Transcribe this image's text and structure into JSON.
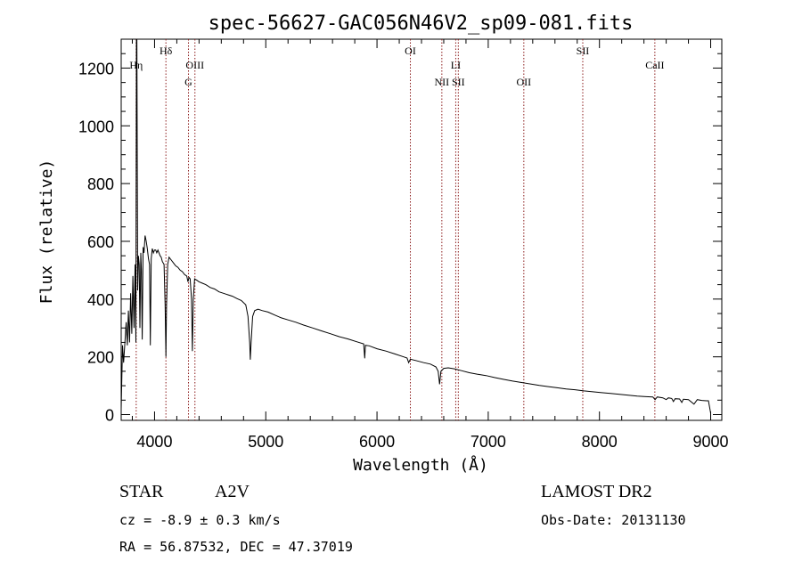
{
  "chart_data": {
    "type": "line",
    "title": "spec-56627-GAC056N46V2_sp09-081.fits",
    "xlabel": "Wavelength (Å)",
    "ylabel": "Flux (relative)",
    "xlim": [
      3700,
      9100
    ],
    "ylim": [
      -20,
      1300
    ],
    "xticks": [
      4000,
      5000,
      6000,
      7000,
      8000,
      9000
    ],
    "yticks": [
      0,
      200,
      400,
      600,
      800,
      1000,
      1200
    ],
    "grid": false,
    "spectral_lines": [
      {
        "label": "Hη",
        "wavelength": 3835,
        "row": 1
      },
      {
        "label": "Hδ",
        "wavelength": 4102,
        "row": 0
      },
      {
        "label": "G",
        "wavelength": 4305,
        "row": 2
      },
      {
        "label": "OIII",
        "wavelength": 4363,
        "row": 1
      },
      {
        "label": "OI",
        "wavelength": 6300,
        "row": 0
      },
      {
        "label": "NII",
        "wavelength": 6583,
        "row": 2
      },
      {
        "label": "LI",
        "wavelength": 6708,
        "row": 1
      },
      {
        "label": "SII",
        "wavelength": 6731,
        "row": 2
      },
      {
        "label": "OII",
        "wavelength": 7320,
        "row": 2
      },
      {
        "label": "SII",
        "wavelength": 7850,
        "row": 0
      },
      {
        "label": "CaII",
        "wavelength": 8498,
        "row": 1
      }
    ],
    "spectrum": [
      [
        3700,
        20
      ],
      [
        3712,
        240
      ],
      [
        3722,
        180
      ],
      [
        3735,
        260
      ],
      [
        3745,
        320
      ],
      [
        3755,
        240
      ],
      [
        3765,
        360
      ],
      [
        3775,
        250
      ],
      [
        3785,
        420
      ],
      [
        3795,
        280
      ],
      [
        3805,
        480
      ],
      [
        3815,
        300
      ],
      [
        3825,
        520
      ],
      [
        3832,
        250
      ],
      [
        3837,
        1300
      ],
      [
        3841,
        1300
      ],
      [
        3848,
        430
      ],
      [
        3855,
        550
      ],
      [
        3862,
        520
      ],
      [
        3868,
        300
      ],
      [
        3876,
        560
      ],
      [
        3882,
        500
      ],
      [
        3889,
        260
      ],
      [
        3897,
        580
      ],
      [
        3905,
        560
      ],
      [
        3915,
        620
      ],
      [
        3925,
        600
      ],
      [
        3935,
        575
      ],
      [
        3945,
        540
      ],
      [
        3955,
        520
      ],
      [
        3962,
        240
      ],
      [
        3970,
        540
      ],
      [
        3980,
        575
      ],
      [
        3990,
        560
      ],
      [
        4000,
        570
      ],
      [
        4010,
        570
      ],
      [
        4020,
        560
      ],
      [
        4030,
        570
      ],
      [
        4040,
        560
      ],
      [
        4050,
        550
      ],
      [
        4060,
        545
      ],
      [
        4070,
        530
      ],
      [
        4085,
        520
      ],
      [
        4095,
        380
      ],
      [
        4102,
        200
      ],
      [
        4108,
        380
      ],
      [
        4118,
        520
      ],
      [
        4130,
        545
      ],
      [
        4150,
        535
      ],
      [
        4170,
        525
      ],
      [
        4190,
        515
      ],
      [
        4210,
        510
      ],
      [
        4230,
        500
      ],
      [
        4250,
        495
      ],
      [
        4270,
        485
      ],
      [
        4290,
        480
      ],
      [
        4300,
        460
      ],
      [
        4310,
        475
      ],
      [
        4320,
        470
      ],
      [
        4332,
        400
      ],
      [
        4340,
        220
      ],
      [
        4348,
        400
      ],
      [
        4360,
        470
      ],
      [
        4380,
        465
      ],
      [
        4400,
        460
      ],
      [
        4430,
        455
      ],
      [
        4460,
        450
      ],
      [
        4500,
        440
      ],
      [
        4540,
        435
      ],
      [
        4580,
        425
      ],
      [
        4620,
        420
      ],
      [
        4660,
        415
      ],
      [
        4700,
        410
      ],
      [
        4740,
        402
      ],
      [
        4780,
        395
      ],
      [
        4820,
        380
      ],
      [
        4840,
        340
      ],
      [
        4855,
        250
      ],
      [
        4861,
        190
      ],
      [
        4868,
        250
      ],
      [
        4882,
        340
      ],
      [
        4900,
        360
      ],
      [
        4930,
        365
      ],
      [
        4970,
        360
      ],
      [
        5020,
        355
      ],
      [
        5080,
        345
      ],
      [
        5140,
        335
      ],
      [
        5200,
        328
      ],
      [
        5270,
        320
      ],
      [
        5340,
        310
      ],
      [
        5420,
        300
      ],
      [
        5500,
        290
      ],
      [
        5580,
        280
      ],
      [
        5660,
        270
      ],
      [
        5740,
        262
      ],
      [
        5820,
        252
      ],
      [
        5880,
        245
      ],
      [
        5890,
        195
      ],
      [
        5896,
        240
      ],
      [
        5930,
        238
      ],
      [
        6000,
        228
      ],
      [
        6080,
        220
      ],
      [
        6160,
        210
      ],
      [
        6240,
        200
      ],
      [
        6270,
        196
      ],
      [
        6285,
        180
      ],
      [
        6300,
        192
      ],
      [
        6360,
        186
      ],
      [
        6420,
        180
      ],
      [
        6480,
        175
      ],
      [
        6530,
        165
      ],
      [
        6550,
        150
      ],
      [
        6563,
        105
      ],
      [
        6575,
        150
      ],
      [
        6600,
        160
      ],
      [
        6640,
        162
      ],
      [
        6700,
        158
      ],
      [
        6760,
        152
      ],
      [
        6830,
        145
      ],
      [
        6900,
        140
      ],
      [
        6980,
        135
      ],
      [
        7060,
        128
      ],
      [
        7140,
        122
      ],
      [
        7220,
        116
      ],
      [
        7300,
        111
      ],
      [
        7380,
        106
      ],
      [
        7460,
        101
      ],
      [
        7540,
        97
      ],
      [
        7620,
        93
      ],
      [
        7700,
        89
      ],
      [
        7780,
        86
      ],
      [
        7860,
        82
      ],
      [
        7940,
        79
      ],
      [
        8020,
        76
      ],
      [
        8100,
        73
      ],
      [
        8180,
        70
      ],
      [
        8260,
        67
      ],
      [
        8340,
        64
      ],
      [
        8420,
        62
      ],
      [
        8480,
        61
      ],
      [
        8500,
        52
      ],
      [
        8520,
        61
      ],
      [
        8570,
        58
      ],
      [
        8600,
        52
      ],
      [
        8620,
        58
      ],
      [
        8650,
        56
      ],
      [
        8665,
        45
      ],
      [
        8680,
        55
      ],
      [
        8720,
        54
      ],
      [
        8740,
        42
      ],
      [
        8755,
        53
      ],
      [
        8800,
        52
      ],
      [
        8850,
        36
      ],
      [
        8880,
        52
      ],
      [
        8920,
        49
      ],
      [
        8960,
        48
      ],
      [
        8980,
        48
      ],
      [
        9000,
        5
      ]
    ]
  },
  "info": {
    "object_type": "STAR",
    "subclass": "A2V",
    "redshift": "cz = -8.9 ± 0.3 km/s",
    "coords": "RA =  56.87532, DEC =  47.37019",
    "survey": "LAMOST DR2",
    "obs_date": "Obs-Date: 20131130"
  }
}
